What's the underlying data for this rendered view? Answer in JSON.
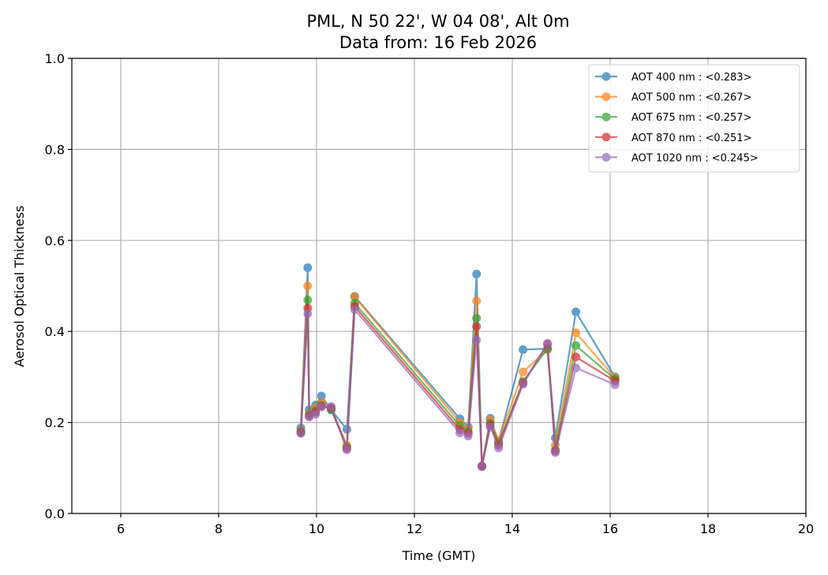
{
  "chart_data": {
    "type": "line",
    "title": [
      "PML, N 50 22', W 04 08', Alt 0m",
      "Data from: 16 Feb 2026"
    ],
    "xlabel": "Time (GMT)",
    "ylabel": "Aerosol Optical Thickness",
    "xlim": [
      5,
      20
    ],
    "ylim": [
      0.0,
      1.0
    ],
    "xticks": [
      6,
      8,
      10,
      12,
      14,
      16,
      18,
      20
    ],
    "xtick_labels": [
      "6",
      "8",
      "10",
      "12",
      "14",
      "16",
      "18",
      "20"
    ],
    "yticks": [
      0.0,
      0.2,
      0.4,
      0.6,
      0.8,
      1.0
    ],
    "ytick_labels": [
      "0.0",
      "0.2",
      "0.4",
      "0.6",
      "0.8",
      "1.0"
    ],
    "grid": true,
    "legend_position": "top-right",
    "x": [
      9.68,
      9.82,
      9.85,
      9.98,
      10.1,
      10.3,
      10.62,
      10.78,
      12.93,
      13.1,
      13.27,
      13.38,
      13.55,
      13.72,
      14.22,
      14.72,
      14.88,
      15.3,
      16.1
    ],
    "series": [
      {
        "name": "AOT 400 nm : <0.283>",
        "color": "#1f77b4",
        "values": [
          0.188,
          0.54,
          0.228,
          0.238,
          0.258,
          0.228,
          0.185,
          0.477,
          0.208,
          0.19,
          0.526,
          0.104,
          0.209,
          0.158,
          0.36,
          0.362,
          0.166,
          0.443,
          0.3
        ]
      },
      {
        "name": "AOT 500 nm : <0.267>",
        "color": "#ff7f0e",
        "values": [
          0.182,
          0.5,
          0.22,
          0.232,
          0.244,
          0.232,
          0.15,
          0.476,
          0.2,
          0.186,
          0.467,
          0.104,
          0.205,
          0.16,
          0.311,
          0.36,
          0.15,
          0.397,
          0.298
        ]
      },
      {
        "name": "AOT 675 nm : <0.257>",
        "color": "#2ca02c",
        "values": [
          0.18,
          0.469,
          0.217,
          0.226,
          0.238,
          0.228,
          0.146,
          0.462,
          0.192,
          0.18,
          0.429,
          0.104,
          0.198,
          0.154,
          0.29,
          0.362,
          0.14,
          0.369,
          0.295
        ]
      },
      {
        "name": "AOT 870 nm : <0.251>",
        "color": "#d62728",
        "values": [
          0.178,
          0.451,
          0.214,
          0.222,
          0.236,
          0.232,
          0.143,
          0.455,
          0.184,
          0.176,
          0.411,
          0.104,
          0.194,
          0.15,
          0.287,
          0.372,
          0.137,
          0.344,
          0.291
        ]
      },
      {
        "name": "AOT 1020 nm : <0.245>",
        "color": "#9467bd",
        "values": [
          0.176,
          0.439,
          0.212,
          0.218,
          0.234,
          0.235,
          0.14,
          0.448,
          0.177,
          0.17,
          0.381,
          0.103,
          0.19,
          0.144,
          0.284,
          0.374,
          0.134,
          0.32,
          0.283
        ]
      }
    ]
  }
}
